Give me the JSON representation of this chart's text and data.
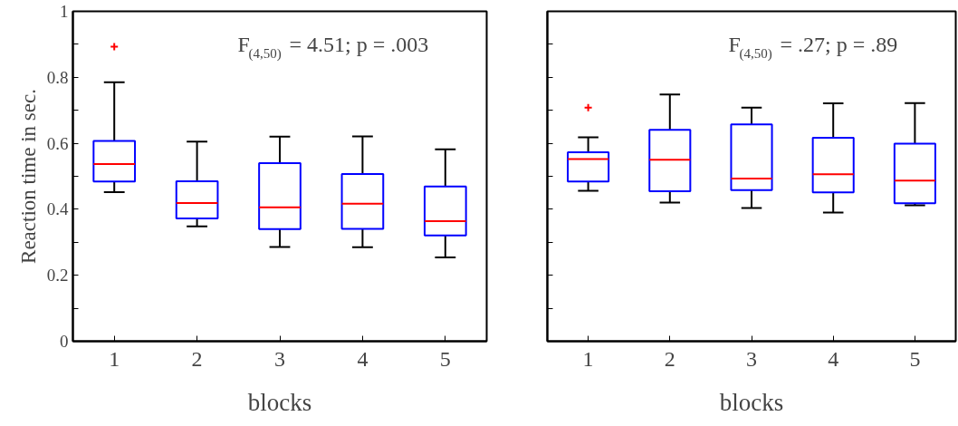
{
  "chart_data": [
    {
      "type": "box",
      "categories": [
        "1",
        "2",
        "3",
        "4",
        "5"
      ],
      "xlabel": "blocks",
      "ylabel": "Reaction time in sec.",
      "ylim": [
        0,
        1
      ],
      "yticks": [
        0,
        {
          "value": 0.1,
          "label": null
        },
        0.2,
        {
          "value": 0.3,
          "label": null
        },
        0.4,
        {
          "value": 0.5,
          "label": null
        },
        0.6,
        {
          "value": 0.7,
          "label": null
        },
        0.8,
        {
          "value": 0.9,
          "label": null
        },
        1
      ],
      "grid": false,
      "marker": "cross",
      "annotations": [
        "F$_{(4,50)}$ = 4.51; p = .003"
      ],
      "series": [
        {
          "color": "#0000ff",
          "boxes": [
            {
              "low": 0.452,
              "q1": 0.484,
              "median": 0.537,
              "q3": 0.607,
              "high": 0.785,
              "outliers": [
                0.893
              ]
            },
            {
              "low": 0.348,
              "q1": 0.372,
              "median": 0.419,
              "q3": 0.485,
              "high": 0.605
            },
            {
              "low": 0.286,
              "q1": 0.34,
              "median": 0.406,
              "q3": 0.54,
              "high": 0.62
            },
            {
              "low": 0.285,
              "q1": 0.341,
              "median": 0.417,
              "q3": 0.507,
              "high": 0.621
            },
            {
              "low": 0.254,
              "q1": 0.321,
              "median": 0.364,
              "q3": 0.469,
              "high": 0.582
            }
          ]
        }
      ]
    },
    {
      "type": "box",
      "categories": [
        "1",
        "2",
        "3",
        "4",
        "5"
      ],
      "xlabel": "blocks",
      "ylim": [
        0,
        1
      ],
      "yticks": [
        0,
        0.1,
        0.2,
        0.3,
        0.4,
        0.5,
        0.6,
        0.7,
        0.8,
        0.9,
        1
      ],
      "tick_labels": "x",
      "grid": false,
      "marker": "cross",
      "annotations": [
        "F$_{(4,50)}$ = .27; p = .89"
      ],
      "series": [
        {
          "color": "#0000ff",
          "boxes": [
            {
              "low": 0.456,
              "q1": 0.484,
              "median": 0.552,
              "q3": 0.573,
              "high": 0.618,
              "outliers": [
                0.708
              ]
            },
            {
              "low": 0.42,
              "q1": 0.455,
              "median": 0.55,
              "q3": 0.641,
              "high": 0.748
            },
            {
              "low": 0.404,
              "q1": 0.458,
              "median": 0.493,
              "q3": 0.657,
              "high": 0.708
            },
            {
              "low": 0.39,
              "q1": 0.451,
              "median": 0.506,
              "q3": 0.617,
              "high": 0.721
            },
            {
              "low": 0.412,
              "q1": 0.418,
              "median": 0.487,
              "q3": 0.599,
              "high": 0.722
            }
          ]
        }
      ]
    }
  ]
}
